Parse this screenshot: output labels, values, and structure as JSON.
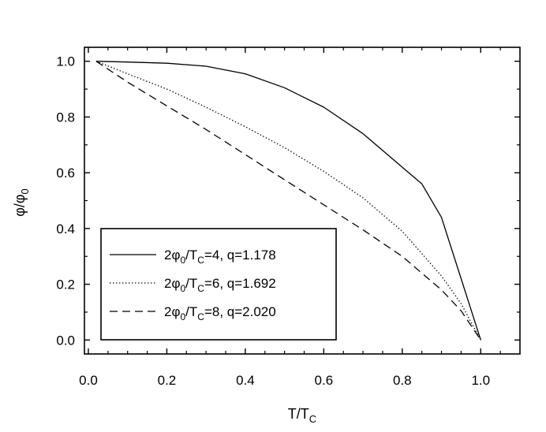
{
  "chart_data": {
    "type": "line",
    "xlabel": {
      "main": "T/T",
      "sub": "C"
    },
    "ylabel": {
      "main": "φ/φ",
      "sub": "0"
    },
    "xlim": [
      -0.01,
      1.1
    ],
    "ylim": [
      -0.05,
      1.05
    ],
    "x_ticks": [
      0.0,
      0.2,
      0.4,
      0.6,
      0.8,
      1.0
    ],
    "x_tick_labels": [
      "0.0",
      "0.2",
      "0.4",
      "0.6",
      "0.8",
      "1.0"
    ],
    "y_ticks": [
      0.0,
      0.2,
      0.4,
      0.6,
      0.8,
      1.0
    ],
    "y_tick_labels": [
      "0.0",
      "0.2",
      "0.4",
      "0.6",
      "0.8",
      "1.0"
    ],
    "grid": false,
    "legend_position": "bottom-left",
    "series": [
      {
        "style": "solid",
        "legend": {
          "pre": "2φ",
          "s1": "0",
          "mid": "/T",
          "s2": "C",
          "post": "=4,  q=1.178"
        },
        "points": [
          [
            0.02,
            1.0
          ],
          [
            0.1,
            0.997
          ],
          [
            0.2,
            0.993
          ],
          [
            0.3,
            0.982
          ],
          [
            0.4,
            0.955
          ],
          [
            0.5,
            0.905
          ],
          [
            0.6,
            0.835
          ],
          [
            0.7,
            0.74
          ],
          [
            0.8,
            0.62
          ],
          [
            0.85,
            0.56
          ],
          [
            0.9,
            0.44
          ],
          [
            0.95,
            0.22
          ],
          [
            1.0,
            0.0
          ]
        ]
      },
      {
        "style": "dotted",
        "legend": {
          "pre": "2φ",
          "s1": "0",
          "mid": "/T",
          "s2": "C",
          "post": "=6,  q=1.692"
        },
        "points": [
          [
            0.02,
            1.0
          ],
          [
            0.1,
            0.955
          ],
          [
            0.2,
            0.9
          ],
          [
            0.3,
            0.835
          ],
          [
            0.4,
            0.765
          ],
          [
            0.5,
            0.69
          ],
          [
            0.6,
            0.605
          ],
          [
            0.7,
            0.51
          ],
          [
            0.8,
            0.39
          ],
          [
            0.9,
            0.23
          ],
          [
            0.95,
            0.13
          ],
          [
            1.0,
            0.0
          ]
        ]
      },
      {
        "style": "dashed",
        "legend": {
          "pre": "2φ",
          "s1": "0",
          "mid": "/T",
          "s2": "C",
          "post": "=8,  q=2.020"
        },
        "points": [
          [
            0.02,
            1.0
          ],
          [
            0.1,
            0.925
          ],
          [
            0.2,
            0.84
          ],
          [
            0.3,
            0.755
          ],
          [
            0.4,
            0.665
          ],
          [
            0.5,
            0.575
          ],
          [
            0.6,
            0.485
          ],
          [
            0.7,
            0.395
          ],
          [
            0.8,
            0.3
          ],
          [
            0.9,
            0.18
          ],
          [
            0.95,
            0.105
          ],
          [
            1.0,
            0.0
          ]
        ]
      }
    ]
  }
}
